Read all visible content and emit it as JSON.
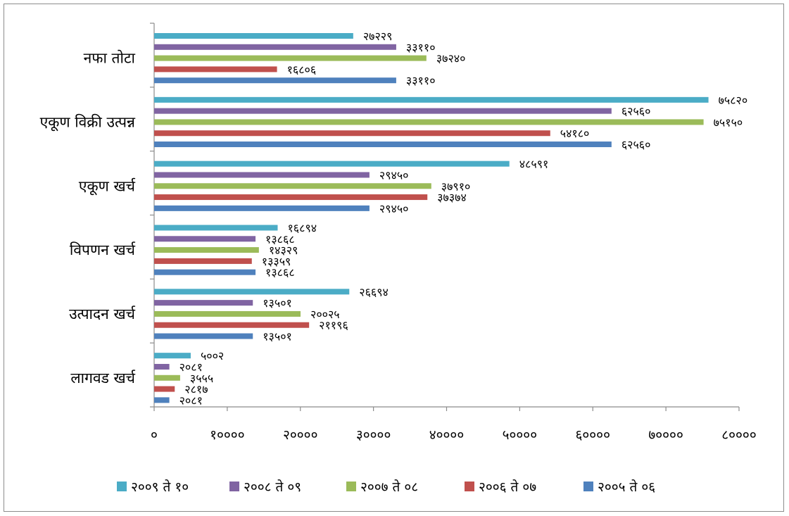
{
  "chart_data": {
    "type": "bar",
    "orientation": "horizontal",
    "categories": [
      "नफा तोटा",
      "एकूण विक्री उत्पन्न",
      "एकूण खर्च",
      "विपणन खर्च",
      "उत्पादन खर्च",
      "लागवड खर्च"
    ],
    "series": [
      {
        "name": "२००९ ते १०",
        "color": "#4bacc6",
        "values": [
          27229,
          75820,
          48591,
          16894,
          26694,
          5002
        ],
        "labels": [
          "२७२२९",
          "७५८२०",
          "४८५९१",
          "१६८९४",
          "२६६९४",
          "५००२"
        ]
      },
      {
        "name": "२००८ ते ०९",
        "color": "#8064a2",
        "values": [
          33110,
          62560,
          29450,
          13868,
          13501,
          2081
        ],
        "labels": [
          "३३११०",
          "६२५६०",
          "२९४५०",
          "१३८६८",
          "१३५०१",
          "२०८१"
        ]
      },
      {
        "name": "२००७ ते ०८",
        "color": "#9bbb59",
        "values": [
          37240,
          75150,
          37910,
          14329,
          20025,
          3555
        ],
        "labels": [
          "३७२४०",
          "७५१५०",
          "३७९१०",
          "१४३२९",
          "२००२५",
          "३५५५"
        ]
      },
      {
        "name": "२००६ ते ०७",
        "color": "#c0504d",
        "values": [
          16806,
          54180,
          37374,
          13359,
          21196,
          2817
        ],
        "labels": [
          "१६८०६",
          "५४१८०",
          "३७३७४",
          "१३३५९",
          "२११९६",
          "२८१७"
        ]
      },
      {
        "name": "२००५ ते ०६",
        "color": "#4f81bd",
        "values": [
          33110,
          62560,
          29450,
          13868,
          13501,
          2081
        ],
        "labels": [
          "३३११०",
          "६२५६०",
          "२९४५०",
          "१३८६८",
          "१३५०१",
          "२०८१"
        ]
      }
    ],
    "xlim": [
      0,
      80000
    ],
    "xticks": [
      0,
      10000,
      20000,
      30000,
      40000,
      50000,
      60000,
      70000,
      80000
    ],
    "xtick_labels": [
      "०",
      "१००००",
      "२००००",
      "३००००",
      "४००००",
      "५००००",
      "६००००",
      "७००००",
      "८००००"
    ],
    "legend_position": "bottom",
    "legend_order": [
      "२००९ ते १०",
      "२००८ ते ०९",
      "२००७ ते ०८",
      "२००६ ते ०७",
      "२००५ ते ०६"
    ],
    "grid": false,
    "title": "",
    "xlabel": "",
    "ylabel": ""
  }
}
